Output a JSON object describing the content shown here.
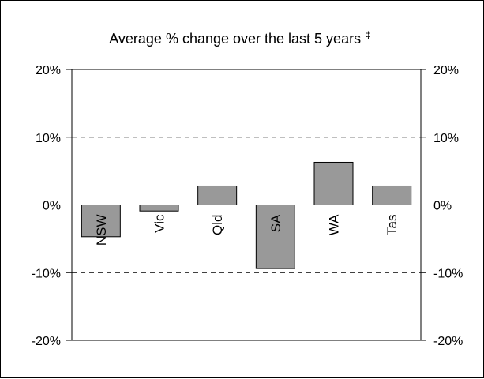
{
  "chart_data": {
    "type": "bar",
    "title": "Average % change over the last 5 years",
    "title_marker": "‡",
    "categories": [
      "NSW",
      "Vic",
      "Qld",
      "SA",
      "WA",
      "Tas"
    ],
    "values": [
      -4.7,
      -0.9,
      2.8,
      -9.4,
      6.3,
      2.8
    ],
    "unit": "%",
    "ylim": [
      -20,
      20
    ],
    "yticks": [
      20,
      10,
      0,
      -10,
      -20
    ],
    "ytick_labels": [
      "20%",
      "10%",
      "0%",
      "-10%",
      "-20%"
    ],
    "grid": "dashed",
    "secondary_axis": true,
    "bar_color": "#999999",
    "bar_border_color": "#000000"
  }
}
